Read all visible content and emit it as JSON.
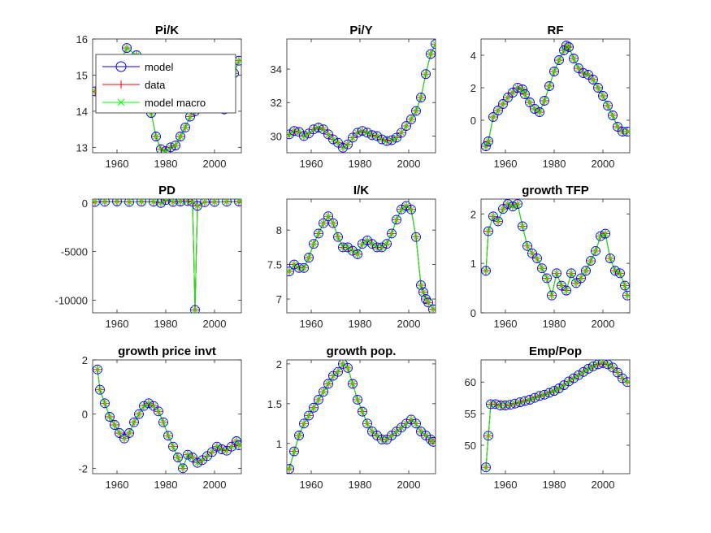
{
  "figure": {
    "background": "#ffffff"
  },
  "legend": {
    "location": "top-left of first panel",
    "entries": [
      {
        "label": "model",
        "color": "#0000ff",
        "marker": "circle"
      },
      {
        "label": "data",
        "color": "#ff0000",
        "marker": "plus"
      },
      {
        "label": "model macro",
        "color": "#00ff00",
        "marker": "x"
      }
    ]
  },
  "chart_data": [
    {
      "type": "line",
      "title": "Pi/K",
      "xlim": [
        1950,
        2011
      ],
      "ylim": [
        12.85,
        16
      ],
      "xticks": [
        1960,
        1980,
        2000
      ],
      "yticks": [
        13,
        14,
        15,
        16
      ],
      "x": [
        1951,
        1955,
        1960,
        1964,
        1968,
        1972,
        1974,
        1976,
        1978,
        1980,
        1982,
        1984,
        1986,
        1988,
        1990,
        1992,
        1994,
        1996,
        1998,
        2000,
        2002,
        2004,
        2006,
        2008,
        2010
      ],
      "values": [
        14.55,
        14.65,
        15.2,
        15.75,
        15.55,
        14.9,
        13.95,
        13.3,
        12.95,
        12.9,
        13.0,
        13.05,
        13.3,
        13.55,
        13.85,
        14.0,
        14.2,
        14.35,
        14.4,
        14.35,
        14.25,
        14.05,
        14.4,
        15.05,
        15.4
      ],
      "series": [
        "model",
        "data",
        "model macro"
      ]
    },
    {
      "type": "line",
      "title": "Pi/Y",
      "xlim": [
        1950,
        2011
      ],
      "ylim": [
        29.0,
        35.8
      ],
      "xticks": [
        1960,
        1980,
        2000
      ],
      "yticks": [
        30,
        32,
        34
      ],
      "x": [
        1951,
        1953,
        1955,
        1957,
        1959,
        1961,
        1963,
        1965,
        1967,
        1969,
        1971,
        1973,
        1975,
        1977,
        1979,
        1981,
        1983,
        1985,
        1987,
        1989,
        1991,
        1993,
        1995,
        1997,
        1999,
        2001,
        2003,
        2005,
        2007,
        2009,
        2011
      ],
      "values": [
        30.1,
        30.3,
        30.25,
        30.0,
        30.15,
        30.4,
        30.5,
        30.4,
        30.1,
        29.8,
        29.6,
        29.3,
        29.5,
        29.9,
        30.2,
        30.3,
        30.2,
        30.05,
        30.0,
        29.8,
        29.7,
        29.75,
        29.9,
        30.2,
        30.6,
        31.0,
        31.5,
        32.3,
        33.7,
        34.9,
        35.5
      ],
      "series": [
        "model",
        "data",
        "model macro"
      ]
    },
    {
      "type": "line",
      "title": "RF",
      "xlim": [
        1950,
        2011
      ],
      "ylim": [
        -2.0,
        5.0
      ],
      "xticks": [
        1960,
        1980,
        2000
      ],
      "yticks": [
        0,
        2,
        4
      ],
      "x": [
        1952,
        1953,
        1955,
        1957,
        1959,
        1961,
        1963,
        1965,
        1967,
        1968,
        1970,
        1972,
        1974,
        1976,
        1978,
        1980,
        1982,
        1984,
        1985,
        1986,
        1988,
        1990,
        1992,
        1994,
        1996,
        1998,
        2000,
        2002,
        2004,
        2006,
        2008,
        2010
      ],
      "values": [
        -1.6,
        -1.3,
        0.2,
        0.6,
        1.0,
        1.4,
        1.7,
        2.0,
        1.9,
        1.6,
        1.1,
        0.7,
        0.5,
        1.2,
        2.1,
        3.0,
        3.7,
        4.3,
        4.6,
        4.5,
        3.8,
        3.2,
        2.9,
        2.8,
        2.5,
        2.0,
        1.5,
        0.9,
        0.3,
        -0.4,
        -0.7,
        -0.7
      ],
      "series": [
        "model",
        "data",
        "model macro"
      ]
    },
    {
      "type": "line",
      "title": "PD",
      "xlim": [
        1950,
        2011
      ],
      "ylim": [
        -11300,
        400
      ],
      "xticks": [
        1960,
        1980,
        2000
      ],
      "yticks": [
        0,
        -5000,
        -10000
      ],
      "x": [
        1951,
        1955,
        1960,
        1965,
        1970,
        1975,
        1978,
        1980,
        1983,
        1986,
        1989,
        1991,
        1992,
        1993,
        1996,
        2000,
        2005,
        2010
      ],
      "values": [
        100,
        120,
        150,
        100,
        130,
        120,
        0,
        300,
        100,
        150,
        200,
        120,
        -11000,
        -300,
        80,
        100,
        120,
        150
      ],
      "series": [
        "model",
        "data",
        "model macro"
      ]
    },
    {
      "type": "line",
      "title": "I/K",
      "xlim": [
        1950,
        2011
      ],
      "ylim": [
        6.8,
        8.45
      ],
      "xticks": [
        1960,
        1980,
        2000
      ],
      "yticks": [
        7,
        7.5,
        8
      ],
      "x": [
        1951,
        1953,
        1955,
        1957,
        1959,
        1961,
        1963,
        1965,
        1967,
        1969,
        1971,
        1973,
        1975,
        1977,
        1979,
        1981,
        1983,
        1985,
        1987,
        1989,
        1991,
        1993,
        1995,
        1997,
        1999,
        2001,
        2003,
        2005,
        2006,
        2007,
        2008,
        2010
      ],
      "values": [
        7.4,
        7.5,
        7.45,
        7.45,
        7.6,
        7.8,
        7.95,
        8.1,
        8.2,
        8.1,
        7.9,
        7.75,
        7.75,
        7.7,
        7.65,
        7.8,
        7.85,
        7.8,
        7.75,
        7.75,
        7.8,
        7.95,
        8.15,
        8.3,
        8.35,
        8.3,
        7.9,
        7.2,
        7.1,
        7.0,
        6.95,
        6.85
      ],
      "series": [
        "model",
        "data",
        "model macro"
      ]
    },
    {
      "type": "line",
      "title": "growth TFP",
      "xlim": [
        1950,
        2011
      ],
      "ylim": [
        0,
        2.3
      ],
      "xticks": [
        1960,
        1980,
        2000
      ],
      "yticks": [
        0,
        1,
        2
      ],
      "x": [
        1952,
        1953,
        1955,
        1957,
        1959,
        1961,
        1963,
        1965,
        1967,
        1969,
        1971,
        1973,
        1975,
        1977,
        1979,
        1981,
        1983,
        1985,
        1987,
        1989,
        1991,
        1993,
        1995,
        1997,
        1999,
        2001,
        2003,
        2005,
        2007,
        2009,
        2010
      ],
      "values": [
        0.85,
        1.65,
        1.95,
        1.85,
        2.1,
        2.2,
        2.15,
        2.2,
        1.75,
        1.35,
        1.2,
        1.1,
        0.9,
        0.7,
        0.35,
        0.8,
        0.55,
        0.45,
        0.8,
        0.6,
        0.7,
        0.85,
        1.05,
        1.25,
        1.55,
        1.6,
        1.1,
        0.85,
        0.8,
        0.55,
        0.35
      ],
      "series": [
        "model",
        "data",
        "model macro"
      ]
    },
    {
      "type": "line",
      "title": "growth price invt",
      "xlim": [
        1950,
        2011
      ],
      "ylim": [
        -2.2,
        2.0
      ],
      "xticks": [
        1960,
        1980,
        2000
      ],
      "yticks": [
        -2,
        0,
        2
      ],
      "x": [
        1952,
        1953,
        1955,
        1957,
        1959,
        1961,
        1963,
        1965,
        1967,
        1969,
        1971,
        1973,
        1975,
        1977,
        1979,
        1981,
        1983,
        1985,
        1987,
        1989,
        1991,
        1993,
        1995,
        1997,
        1999,
        2001,
        2003,
        2005,
        2007,
        2009,
        2010
      ],
      "values": [
        1.65,
        0.9,
        0.4,
        -0.1,
        -0.4,
        -0.7,
        -0.9,
        -0.7,
        -0.3,
        0.0,
        0.3,
        0.4,
        0.3,
        0.1,
        -0.3,
        -0.8,
        -1.2,
        -1.6,
        -2.0,
        -1.5,
        -1.6,
        -1.8,
        -1.7,
        -1.55,
        -1.4,
        -1.2,
        -1.3,
        -1.35,
        -1.2,
        -1.0,
        -1.15
      ],
      "series": [
        "model",
        "data",
        "model macro"
      ]
    },
    {
      "type": "line",
      "title": "growth pop.",
      "xlim": [
        1950,
        2011
      ],
      "ylim": [
        0.62,
        2.05
      ],
      "xticks": [
        1960,
        1980,
        2000
      ],
      "yticks": [
        1,
        1.5,
        2
      ],
      "x": [
        1951,
        1953,
        1955,
        1957,
        1959,
        1961,
        1963,
        1965,
        1967,
        1969,
        1971,
        1973,
        1975,
        1977,
        1979,
        1981,
        1983,
        1985,
        1987,
        1989,
        1991,
        1993,
        1995,
        1997,
        1999,
        2001,
        2003,
        2005,
        2007,
        2009,
        2010
      ],
      "values": [
        0.68,
        0.9,
        1.1,
        1.25,
        1.35,
        1.45,
        1.55,
        1.65,
        1.75,
        1.85,
        1.9,
        2.0,
        1.95,
        1.75,
        1.55,
        1.4,
        1.25,
        1.15,
        1.1,
        1.05,
        1.05,
        1.1,
        1.15,
        1.2,
        1.25,
        1.3,
        1.25,
        1.15,
        1.1,
        1.05,
        1.02
      ],
      "series": [
        "model",
        "data",
        "model macro"
      ]
    },
    {
      "type": "line",
      "title": "Emp/Pop",
      "xlim": [
        1950,
        2011
      ],
      "ylim": [
        45.5,
        63.5
      ],
      "xticks": [
        1960,
        1980,
        2000
      ],
      "yticks": [
        50,
        55,
        60
      ],
      "x": [
        1952,
        1953,
        1954,
        1956,
        1958,
        1960,
        1962,
        1964,
        1966,
        1968,
        1970,
        1972,
        1974,
        1976,
        1978,
        1980,
        1982,
        1984,
        1986,
        1988,
        1990,
        1992,
        1994,
        1996,
        1998,
        2000,
        2002,
        2004,
        2006,
        2008,
        2010
      ],
      "values": [
        46.5,
        51.5,
        56.5,
        56.5,
        56.3,
        56.3,
        56.4,
        56.6,
        56.8,
        57.0,
        57.2,
        57.5,
        57.8,
        58.0,
        58.3,
        58.6,
        59.0,
        59.5,
        60.1,
        60.6,
        61.1,
        61.6,
        62.1,
        62.5,
        62.8,
        63.0,
        62.8,
        62.3,
        61.5,
        60.6,
        60.0
      ],
      "series": [
        "model",
        "data",
        "model macro"
      ]
    }
  ]
}
